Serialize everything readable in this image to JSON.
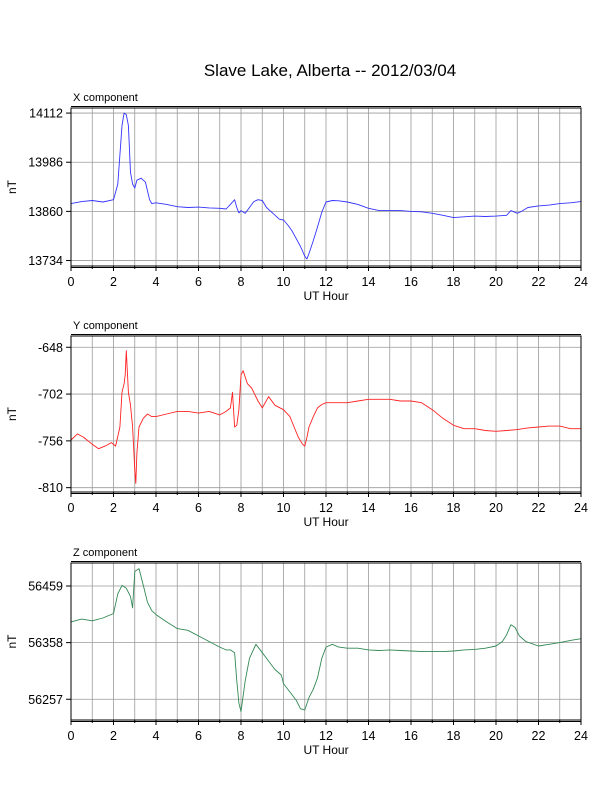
{
  "page": {
    "title": "Slave Lake, Alberta -- 2012/03/04"
  },
  "chart_data": [
    {
      "type": "line",
      "panel_title": "X component",
      "xlabel": "UT Hour",
      "ylabel": "nT",
      "xlim": [
        0,
        24
      ],
      "ylim": [
        13720,
        14125
      ],
      "xticks": [
        "0",
        "2",
        "4",
        "6",
        "8",
        "10",
        "12",
        "14",
        "16",
        "18",
        "20",
        "22",
        "24"
      ],
      "yticks": [
        "13734",
        "13860",
        "13986",
        "14112"
      ],
      "ytick_values": [
        13734,
        13860,
        13986,
        14112
      ],
      "grid": true,
      "color": "#3333ff",
      "series": [
        {
          "x": [
            0,
            0.5,
            1,
            1.5,
            2,
            2.2,
            2.4,
            2.5,
            2.6,
            2.7,
            2.8,
            2.9,
            3.0,
            3.1,
            3.3,
            3.5,
            3.7,
            3.8,
            4,
            4.5,
            5,
            5.5,
            6,
            6.5,
            7,
            7.3,
            7.5,
            7.7,
            7.8,
            7.9,
            8,
            8.2,
            8.4,
            8.6,
            8.8,
            9,
            9.2,
            9.5,
            9.8,
            10,
            10.2,
            10.4,
            10.6,
            10.8,
            11,
            11.1,
            11.2,
            11.4,
            11.6,
            11.8,
            12,
            12.3,
            12.6,
            13,
            13.5,
            14,
            14.5,
            15,
            15.5,
            16,
            16.5,
            17,
            17.5,
            18,
            18.5,
            19,
            19.5,
            20,
            20.5,
            20.7,
            21,
            21.2,
            21.5,
            22,
            22.5,
            23,
            23.5,
            24
          ],
          "y": [
            13880,
            13885,
            13888,
            13884,
            13890,
            13930,
            14080,
            14112,
            14108,
            14080,
            13960,
            13930,
            13920,
            13940,
            13945,
            13935,
            13890,
            13880,
            13882,
            13878,
            13872,
            13870,
            13871,
            13869,
            13868,
            13866,
            13878,
            13890,
            13870,
            13856,
            13862,
            13855,
            13870,
            13885,
            13890,
            13888,
            13870,
            13855,
            13840,
            13838,
            13825,
            13810,
            13790,
            13770,
            13745,
            13738,
            13752,
            13785,
            13820,
            13858,
            13884,
            13888,
            13887,
            13884,
            13878,
            13868,
            13862,
            13862,
            13862,
            13860,
            13859,
            13855,
            13850,
            13844,
            13846,
            13848,
            13847,
            13848,
            13850,
            13862,
            13855,
            13860,
            13870,
            13874,
            13876,
            13880,
            13882,
            13885
          ]
        }
      ]
    },
    {
      "type": "line",
      "panel_title": "Y component",
      "xlabel": "UT Hour",
      "ylabel": "nT",
      "xlim": [
        0,
        24
      ],
      "ylim": [
        -815,
        -635
      ],
      "xticks": [
        "0",
        "2",
        "4",
        "6",
        "8",
        "10",
        "12",
        "14",
        "16",
        "18",
        "20",
        "22",
        "24"
      ],
      "yticks": [
        "-810",
        "-756",
        "-702",
        "-648"
      ],
      "ytick_values": [
        -810,
        -756,
        -702,
        -648
      ],
      "grid": true,
      "color": "#ff2222",
      "series": [
        {
          "x": [
            0,
            0.3,
            0.6,
            1,
            1.3,
            1.6,
            1.9,
            2.1,
            2.3,
            2.4,
            2.5,
            2.55,
            2.6,
            2.7,
            2.8,
            2.9,
            3.0,
            3.05,
            3.1,
            3.2,
            3.4,
            3.6,
            3.8,
            4,
            4.5,
            5,
            5.5,
            6,
            6.5,
            7,
            7.3,
            7.5,
            7.6,
            7.7,
            7.8,
            7.9,
            8,
            8.1,
            8.3,
            8.5,
            8.8,
            9,
            9.3,
            9.6,
            10,
            10.3,
            10.5,
            10.7,
            10.9,
            11,
            11.1,
            11.2,
            11.4,
            11.6,
            11.8,
            12,
            12.5,
            13,
            13.5,
            14,
            14.5,
            15,
            15.5,
            16,
            16.5,
            17,
            17.5,
            18,
            18.5,
            19,
            19.5,
            20,
            20.5,
            21,
            21.5,
            22,
            22.5,
            23,
            23.5,
            24
          ],
          "y": [
            -755,
            -748,
            -752,
            -760,
            -765,
            -762,
            -758,
            -762,
            -740,
            -700,
            -690,
            -680,
            -652,
            -700,
            -715,
            -740,
            -790,
            -805,
            -770,
            -740,
            -730,
            -725,
            -728,
            -728,
            -725,
            -722,
            -722,
            -724,
            -722,
            -726,
            -722,
            -718,
            -700,
            -740,
            -738,
            -720,
            -680,
            -675,
            -690,
            -695,
            -710,
            -718,
            -705,
            -715,
            -720,
            -728,
            -740,
            -752,
            -760,
            -762,
            -752,
            -740,
            -728,
            -718,
            -714,
            -712,
            -712,
            -712,
            -710,
            -708,
            -708,
            -708,
            -710,
            -710,
            -712,
            -720,
            -730,
            -738,
            -742,
            -742,
            -744,
            -745,
            -744,
            -743,
            -741,
            -740,
            -739,
            -739,
            -742,
            -742
          ]
        }
      ]
    },
    {
      "type": "line",
      "panel_title": "Z component",
      "xlabel": "UT Hour",
      "ylabel": "nT",
      "xlim": [
        0,
        24
      ],
      "ylim": [
        56220,
        56500
      ],
      "xticks": [
        "0",
        "2",
        "4",
        "6",
        "8",
        "10",
        "12",
        "14",
        "16",
        "18",
        "20",
        "22",
        "24"
      ],
      "yticks": [
        "56257",
        "56358",
        "56459"
      ],
      "ytick_values": [
        56257,
        56358,
        56459
      ],
      "grid": true,
      "color": "#338855",
      "series": [
        {
          "x": [
            0,
            0.5,
            1,
            1.5,
            2,
            2.2,
            2.4,
            2.6,
            2.8,
            2.9,
            3.0,
            3.2,
            3.4,
            3.6,
            3.8,
            4,
            4.5,
            5,
            5.5,
            6,
            6.5,
            7,
            7.3,
            7.5,
            7.7,
            7.8,
            7.9,
            8,
            8.2,
            8.4,
            8.7,
            9,
            9.3,
            9.6,
            9.9,
            10,
            10.3,
            10.6,
            10.8,
            11,
            11.2,
            11.4,
            11.6,
            11.8,
            12,
            12.3,
            12.6,
            13,
            13.5,
            14,
            14.5,
            15,
            15.5,
            16,
            16.5,
            17,
            17.5,
            18,
            18.5,
            19,
            19.5,
            20,
            20.3,
            20.5,
            20.7,
            20.9,
            21.1,
            21.4,
            21.7,
            22,
            22.5,
            23,
            23.5,
            24
          ],
          "y": [
            56395,
            56400,
            56397,
            56402,
            56410,
            56445,
            56460,
            56455,
            56440,
            56420,
            56485,
            56490,
            56460,
            56430,
            56415,
            56408,
            56395,
            56383,
            56380,
            56370,
            56360,
            56350,
            56345,
            56345,
            56340,
            56290,
            56250,
            56235,
            56290,
            56330,
            56355,
            56340,
            56325,
            56310,
            56300,
            56285,
            56270,
            56255,
            56240,
            56238,
            56260,
            56275,
            56295,
            56330,
            56350,
            56355,
            56350,
            56348,
            56348,
            56345,
            56344,
            56345,
            56344,
            56343,
            56342,
            56342,
            56342,
            56343,
            56345,
            56346,
            56348,
            56352,
            56360,
            56372,
            56390,
            56385,
            56370,
            56360,
            56356,
            56352,
            56355,
            56358,
            56362,
            56365
          ]
        }
      ]
    }
  ]
}
